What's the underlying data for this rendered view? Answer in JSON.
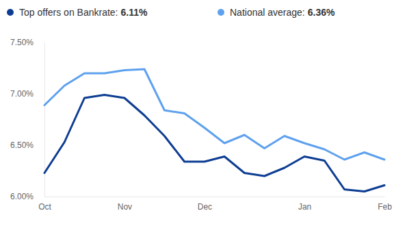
{
  "chart_data": {
    "type": "line",
    "categories": [
      "Oct",
      null,
      null,
      null,
      "Nov",
      null,
      null,
      null,
      "Dec",
      null,
      null,
      null,
      null,
      "Jan",
      null,
      null,
      null,
      "Feb"
    ],
    "series": [
      {
        "name": "Top offers on Bankrate:",
        "current_label": "6.11%",
        "color": "#0d3d92",
        "values": [
          6.23,
          6.53,
          6.96,
          6.99,
          6.96,
          6.79,
          6.59,
          6.34,
          6.34,
          6.39,
          6.23,
          6.2,
          6.28,
          6.39,
          6.35,
          6.07,
          6.05,
          6.11
        ]
      },
      {
        "name": "National average:",
        "current_label": "6.36%",
        "color": "#5ea1ee",
        "values": [
          6.89,
          7.08,
          7.2,
          7.2,
          7.23,
          7.24,
          6.84,
          6.81,
          6.67,
          6.52,
          6.6,
          6.47,
          6.59,
          6.52,
          6.46,
          6.36,
          6.43,
          6.36
        ]
      }
    ],
    "ylim": [
      6.0,
      7.5
    ],
    "yticks": [
      {
        "value": 6.0,
        "label": "6.00%"
      },
      {
        "value": 6.5,
        "label": "6.50%"
      },
      {
        "value": 7.0,
        "label": "7.00%"
      },
      {
        "value": 7.5,
        "label": "7.50%"
      }
    ],
    "grid": false,
    "legend": "top-left"
  }
}
